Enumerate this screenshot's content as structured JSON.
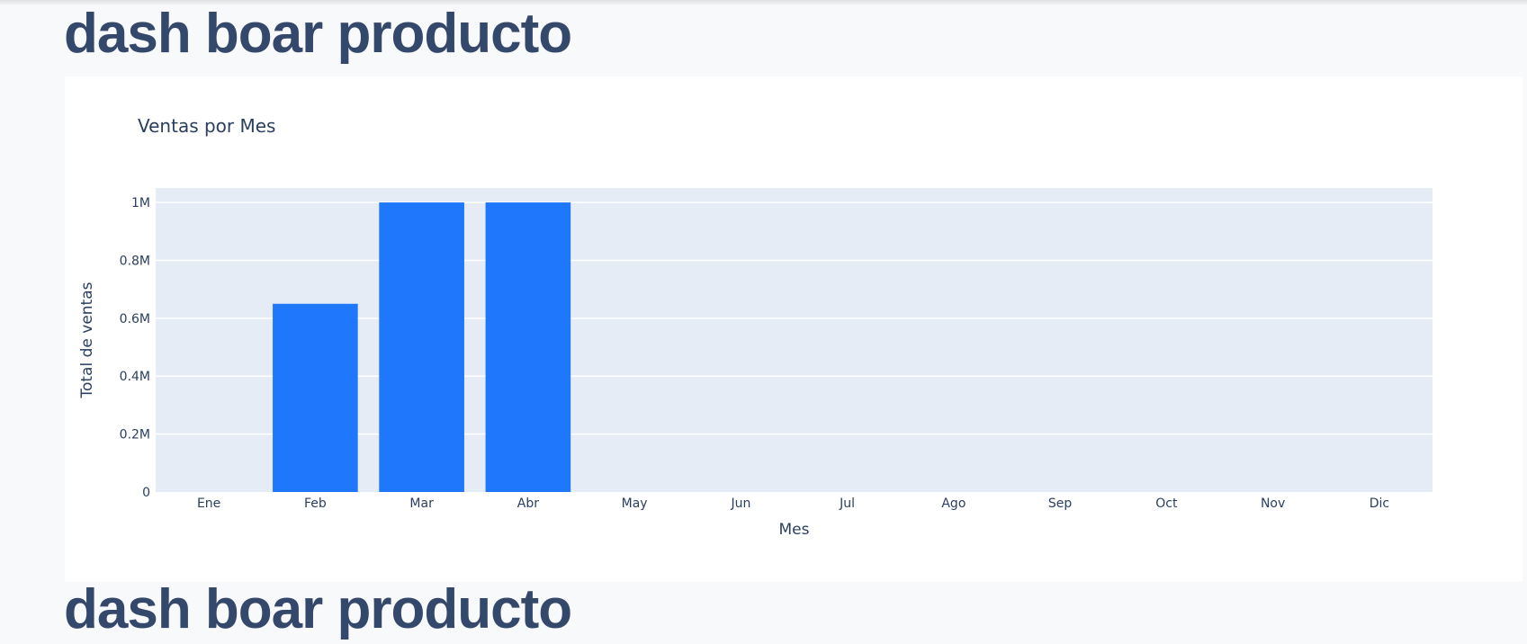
{
  "page": {
    "title": "dash boar producto",
    "next_title": "dash boar producto"
  },
  "colors": {
    "background": "#f8f9fa",
    "title": "#34486b",
    "plot_bg": "#e5ecf6",
    "bar": "#1f77fb"
  },
  "chart_data": {
    "type": "bar",
    "title": "Ventas por Mes",
    "xlabel": "Mes",
    "ylabel": "Total de ventas",
    "categories": [
      "Ene",
      "Feb",
      "Mar",
      "Abr",
      "May",
      "Jun",
      "Jul",
      "Ago",
      "Sep",
      "Oct",
      "Nov",
      "Dic"
    ],
    "values": [
      0,
      650000,
      1000000,
      1000000,
      0,
      0,
      0,
      0,
      0,
      0,
      0,
      0
    ],
    "ylim": [
      0,
      1050000
    ],
    "yticks": [
      0,
      200000,
      400000,
      600000,
      800000,
      1000000
    ],
    "ytick_labels": [
      "0",
      "0.2M",
      "0.4M",
      "0.6M",
      "0.8M",
      "1M"
    ],
    "grid": true,
    "legend": "none"
  }
}
